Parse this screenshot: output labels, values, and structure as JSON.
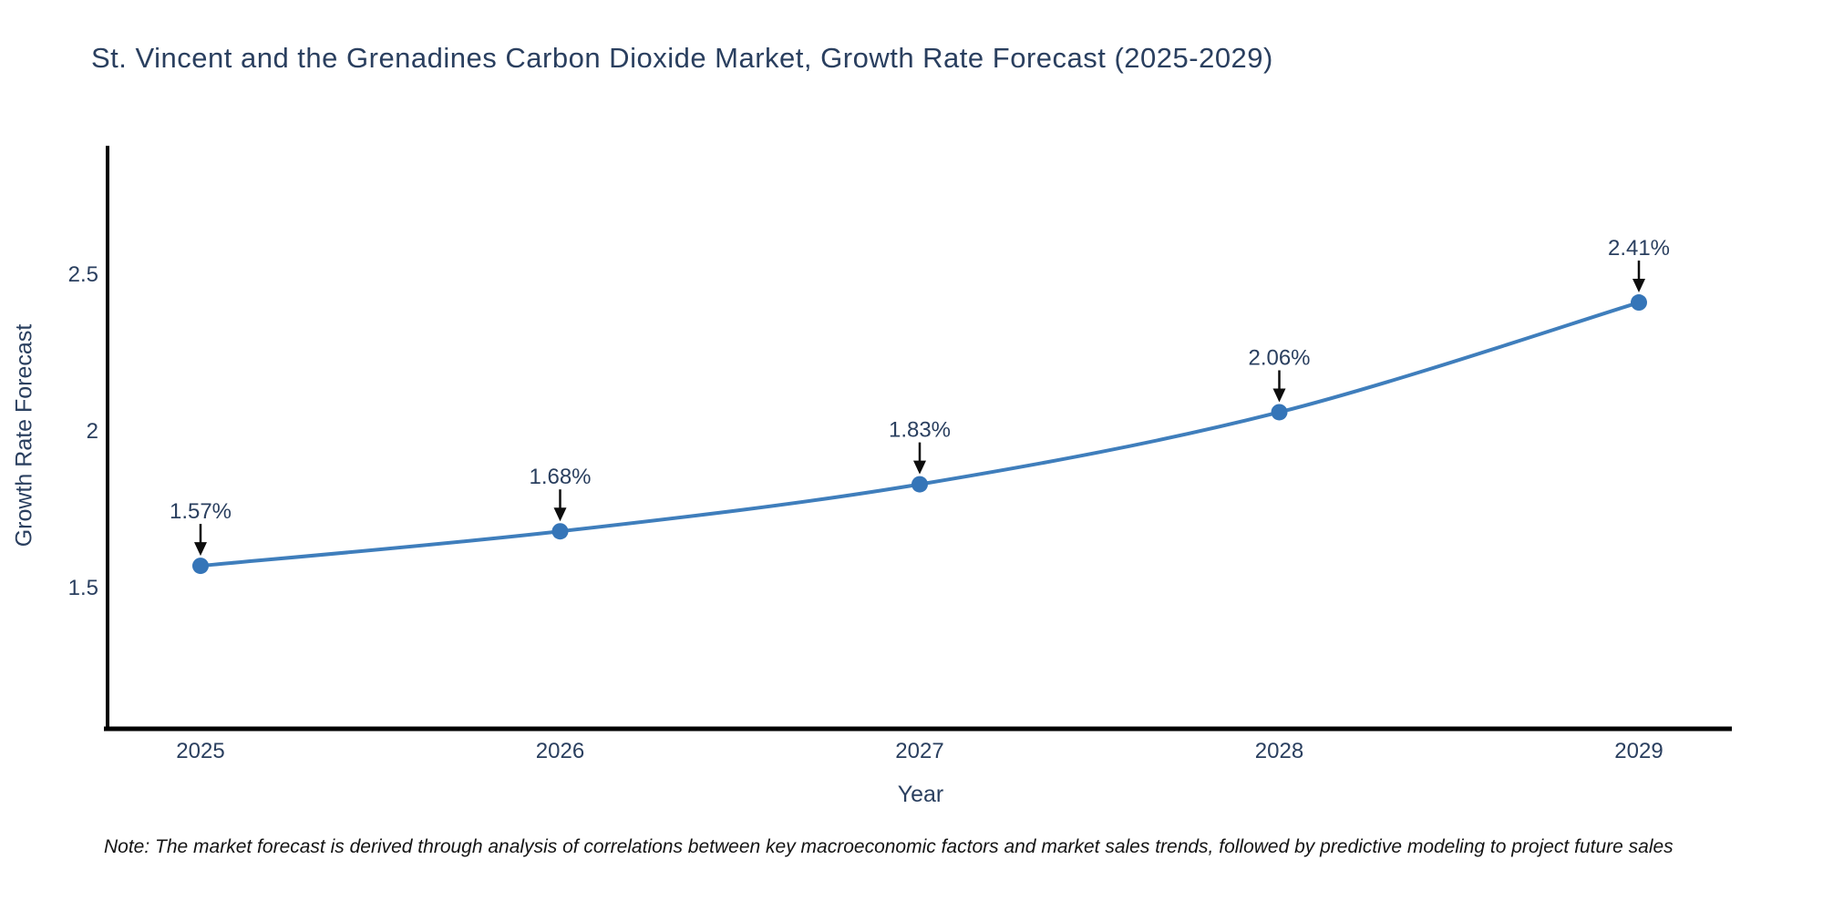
{
  "chart_data": {
    "type": "line",
    "title": "St. Vincent and the Grenadines Carbon Dioxide Market, Growth Rate Forecast (2025-2029)",
    "x": [
      "2025",
      "2026",
      "2027",
      "2028",
      "2029"
    ],
    "values": [
      1.57,
      1.68,
      1.83,
      2.06,
      2.41
    ],
    "point_labels": [
      "1.57%",
      "1.68%",
      "1.83%",
      "2.06%",
      "2.41%"
    ],
    "xlabel": "Year",
    "ylabel": "Growth Rate Forecast",
    "ytick_labels": [
      "1.5",
      "2",
      "2.5"
    ],
    "ytick_values": [
      1.5,
      2,
      2.5
    ],
    "ylim": [
      1.05,
      2.91
    ],
    "grid": false,
    "legend": false,
    "note": "Note: The market forecast is derived through analysis of correlations between key macroeconomic factors and market sales trends, followed by predictive modeling to project future sales",
    "colors": {
      "line": "#3f7ebc",
      "marker": "#3575b8",
      "axis": "#000000",
      "tick_text": "#2a3f5f",
      "annotation_text": "#2a3f5f",
      "arrow": "#0d0d0d",
      "title_text": "#2a3f5f",
      "background": "#ffffff"
    }
  }
}
